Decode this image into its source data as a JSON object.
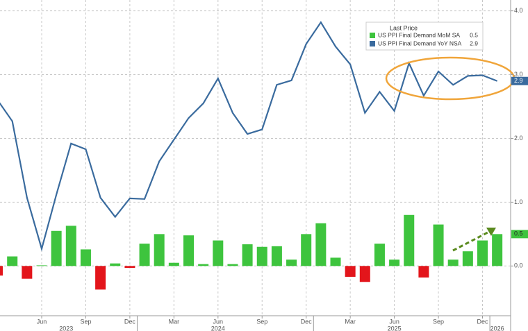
{
  "chart_data": {
    "type": "bar_line",
    "categories": [
      null,
      null,
      null,
      "Jun",
      null,
      null,
      "Sep",
      null,
      null,
      "Dec",
      null,
      null,
      "Mar",
      null,
      null,
      "Jun",
      null,
      null,
      "Sep",
      null,
      null,
      "Dec",
      null,
      null,
      "Mar",
      null,
      null,
      "Jun",
      null,
      null,
      "Sep",
      null,
      null,
      "Dec",
      null
    ],
    "year_labels": [
      null,
      null,
      null,
      null,
      null,
      "2023",
      null,
      null,
      null,
      null,
      null,
      null,
      null,
      null,
      null,
      "2024",
      null,
      null,
      null,
      null,
      null,
      null,
      null,
      null,
      null,
      null,
      null,
      "2025",
      null,
      null,
      null,
      null,
      null,
      null,
      "2026"
    ],
    "legend_title": "Last Price",
    "series": [
      {
        "name": "US PPI Final Demand MoM SA",
        "type": "bar",
        "color": "#3ec43e",
        "negative_color": "#e3151b",
        "values": [
          -0.15,
          0.15,
          -0.2,
          0.01,
          0.55,
          0.63,
          0.26,
          -0.37,
          0.04,
          -0.03,
          0.35,
          0.5,
          0.05,
          0.48,
          0.03,
          0.4,
          0.03,
          0.34,
          0.3,
          0.31,
          0.1,
          0.5,
          0.67,
          0.13,
          -0.17,
          -0.25,
          0.35,
          0.1,
          0.8,
          -0.18,
          0.65,
          0.1,
          0.23,
          0.4,
          0.5
        ]
      },
      {
        "name": "US PPI Final Demand YoY NSA",
        "type": "line",
        "color": "#3a6b9e",
        "values": [
          2.6,
          2.27,
          1.07,
          0.27,
          1.12,
          1.92,
          1.83,
          1.07,
          0.77,
          1.06,
          1.05,
          1.64,
          1.98,
          2.32,
          2.55,
          2.94,
          2.4,
          2.07,
          2.14,
          2.84,
          2.91,
          3.48,
          3.82,
          3.44,
          3.16,
          2.4,
          2.73,
          2.43,
          3.18,
          2.67,
          3.05,
          2.84,
          2.98,
          2.99,
          2.9
        ]
      }
    ],
    "ylim": [
      -0.78,
      4.17
    ],
    "yticks": [
      {
        "value": 0,
        "label": "0.0"
      },
      {
        "value": 1,
        "label": "1.0"
      },
      {
        "value": 2,
        "label": "2.0"
      },
      {
        "value": 3,
        "label": "3.0"
      },
      {
        "value": 4,
        "label": "4.0"
      }
    ],
    "grid": true
  }
}
